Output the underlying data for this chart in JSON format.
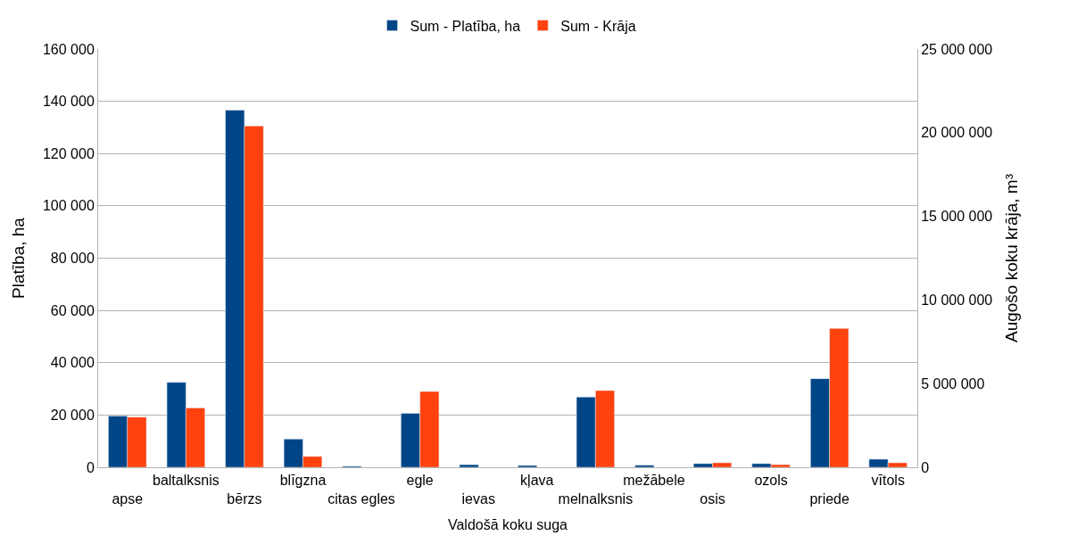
{
  "chart_data": {
    "type": "bar",
    "xlabel": "Valdošā koku suga",
    "ylabel": "Platība, ha",
    "y2label": "Augošo koku krāja, m³",
    "categories": [
      "apse",
      "baltalksnis",
      "bērzs",
      "blīgzna",
      "citas egles",
      "egle",
      "ievas",
      "kļava",
      "melnalksnis",
      "mežābele",
      "osis",
      "ozols",
      "priede",
      "vītols"
    ],
    "series": [
      {
        "name": "Sum - Platība, ha",
        "color": "#004586",
        "values": [
          19600,
          32500,
          136600,
          10800,
          400,
          20600,
          1000,
          700,
          26900,
          800,
          1400,
          1400,
          33900,
          3100
        ]
      },
      {
        "name": "Sum - Krāja",
        "color": "#ff420e",
        "axis": "y2",
        "values": [
          3000000,
          3550000,
          20400000,
          650000,
          null,
          4530000,
          null,
          null,
          4590000,
          null,
          270000,
          160000,
          8300000,
          270000
        ]
      }
    ],
    "ylim": [
      0,
      160000
    ],
    "yticks": [
      {
        "value": 0,
        "label": "0"
      },
      {
        "value": 20000,
        "label": "20 000"
      },
      {
        "value": 40000,
        "label": "40 000"
      },
      {
        "value": 60000,
        "label": "60 000"
      },
      {
        "value": 80000,
        "label": "80 000"
      },
      {
        "value": 100000,
        "label": "100 000"
      },
      {
        "value": 120000,
        "label": "120 000"
      },
      {
        "value": 140000,
        "label": "140 000"
      },
      {
        "value": 160000,
        "label": "160 000"
      }
    ],
    "y2lim": [
      0,
      25000000
    ],
    "y2ticks": [
      {
        "value": 0,
        "label": "0"
      },
      {
        "value": 5000000,
        "label": "5 000 000"
      },
      {
        "value": 10000000,
        "label": "10 000 000"
      },
      {
        "value": 15000000,
        "label": "15 000 000"
      },
      {
        "value": 20000000,
        "label": "20 000 000"
      },
      {
        "value": 25000000,
        "label": "25 000 000"
      }
    ],
    "grid": "y",
    "legend": "top"
  }
}
